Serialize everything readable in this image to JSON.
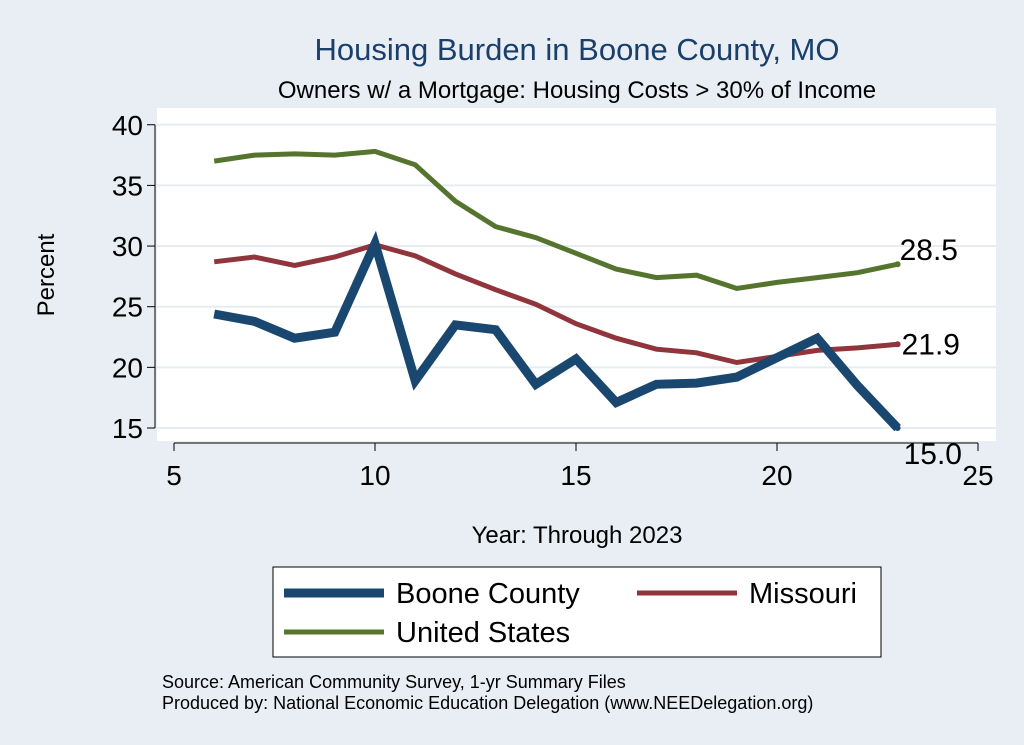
{
  "chart_data": {
    "type": "line",
    "title": "Housing Burden in Boone County, MO",
    "subtitle": "Owners w/ a Mortgage: Housing Costs > 30% of Income",
    "xlabel": "Year: Through 2023",
    "ylabel": "Percent",
    "xlim": [
      5,
      25
    ],
    "ylim": [
      14.5,
      41.5
    ],
    "xticks": [
      5,
      10,
      15,
      20,
      25
    ],
    "yticks": [
      15,
      20,
      25,
      30,
      35,
      40
    ],
    "grid": true,
    "legend_position": "bottom",
    "series": [
      {
        "name": "Boone County",
        "color": "#1a476f",
        "weight": "thick",
        "x": [
          6,
          7,
          8,
          9,
          10,
          11,
          12,
          13,
          14,
          15,
          16,
          17,
          18,
          19,
          21,
          22,
          23
        ],
        "values": [
          24.4,
          23.8,
          22.4,
          22.9,
          30.2,
          18.9,
          23.5,
          23.1,
          18.6,
          20.7,
          17.1,
          18.6,
          18.7,
          19.2,
          22.4,
          18.5,
          15.0
        ],
        "end_label": "15.0"
      },
      {
        "name": "Missouri",
        "color": "#90353b",
        "weight": "medium",
        "x": [
          6,
          7,
          8,
          9,
          10,
          11,
          12,
          13,
          14,
          15,
          16,
          17,
          18,
          19,
          20,
          21,
          22,
          23
        ],
        "values": [
          28.7,
          29.1,
          28.4,
          29.1,
          30.1,
          29.2,
          27.7,
          26.4,
          25.2,
          23.6,
          22.4,
          21.5,
          21.2,
          20.4,
          20.9,
          21.4,
          21.6,
          21.9
        ],
        "end_label": "21.9"
      },
      {
        "name": "United States",
        "color": "#55752f",
        "weight": "medium",
        "x": [
          6,
          7,
          8,
          9,
          10,
          11,
          12,
          13,
          14,
          15,
          16,
          17,
          18,
          19,
          20,
          21,
          22,
          23
        ],
        "values": [
          37.0,
          37.5,
          37.6,
          37.5,
          37.8,
          36.7,
          33.7,
          31.6,
          30.7,
          29.4,
          28.1,
          27.4,
          27.6,
          26.5,
          27.0,
          27.4,
          27.8,
          28.5
        ],
        "end_label": "28.5"
      }
    ],
    "source": "Source: American Community Survey, 1-yr Summary Files",
    "producer": "Produced by: National Economic Education Delegation (www.NEEDelegation.org)"
  }
}
